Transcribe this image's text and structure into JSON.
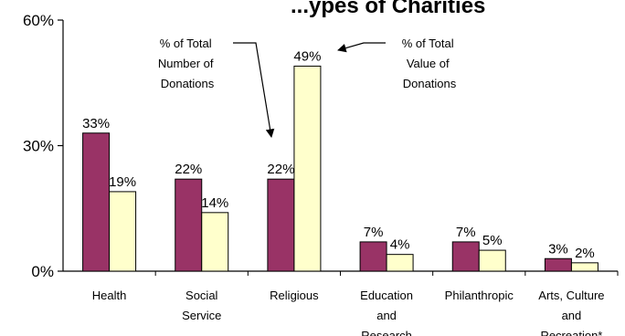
{
  "chart_data": {
    "type": "bar",
    "title_fragment": "...ypes of Charities",
    "categories": [
      [
        "Health"
      ],
      [
        "Social",
        "Service"
      ],
      [
        "Religious"
      ],
      [
        "Education",
        "and",
        "Research"
      ],
      [
        "Philanthropic"
      ],
      [
        "Arts, Culture",
        "and",
        "Recreation*"
      ]
    ],
    "series": [
      {
        "name": "% of Total Number of Donations",
        "values": [
          33,
          22,
          22,
          7,
          7,
          3
        ],
        "labels": [
          "33%",
          "22%",
          "22%",
          "7%",
          "7%",
          "3%"
        ],
        "color": "#993366"
      },
      {
        "name": "% of Total Value of Donations",
        "values": [
          19,
          14,
          49,
          4,
          5,
          2
        ],
        "labels": [
          "19%",
          "14%",
          "49%",
          "4%",
          "5%",
          "2%"
        ],
        "color": "#ffffcc"
      }
    ],
    "yticks": [
      "0%",
      "30%",
      "60%"
    ],
    "ylim": [
      0,
      60
    ],
    "annotations": [
      {
        "lines": [
          "% of Total",
          "Number of",
          "Donations"
        ]
      },
      {
        "lines": [
          "% of Total",
          "Value of",
          "Donations"
        ]
      }
    ],
    "grid": false,
    "legend": "annotations-in-plot"
  }
}
